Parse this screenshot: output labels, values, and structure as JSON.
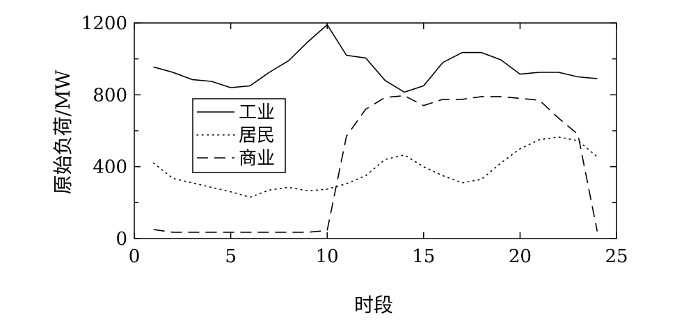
{
  "chart_data": {
    "type": "line",
    "title": "",
    "xlabel": "时段",
    "ylabel": "原始负荷/MW",
    "xlim": [
      0,
      25
    ],
    "ylim": [
      0,
      1200
    ],
    "xticks": [
      0,
      5,
      10,
      15,
      20,
      25
    ],
    "yticks": [
      0,
      400,
      800,
      1200
    ],
    "yminor_ticks": [
      200,
      600,
      1000
    ],
    "grid": false,
    "legend_position": "left",
    "x": [
      1,
      2,
      3,
      4,
      5,
      6,
      7,
      8,
      9,
      10,
      11,
      12,
      13,
      14,
      15,
      16,
      17,
      18,
      19,
      20,
      21,
      22,
      23,
      24
    ],
    "series": [
      {
        "name": "工业",
        "style": "solid",
        "color": "#000000",
        "values": [
          955,
          925,
          885,
          875,
          840,
          850,
          925,
          990,
          1095,
          1190,
          1020,
          1005,
          880,
          815,
          850,
          980,
          1035,
          1035,
          995,
          915,
          925,
          925,
          900,
          890
        ]
      },
      {
        "name": "居民",
        "style": "dotted",
        "color": "#000000",
        "values": [
          420,
          335,
          310,
          285,
          260,
          230,
          270,
          285,
          265,
          275,
          305,
          350,
          440,
          465,
          400,
          350,
          310,
          330,
          420,
          500,
          550,
          565,
          545,
          455
        ]
      },
      {
        "name": "商业",
        "style": "dashed",
        "color": "#000000",
        "values": [
          50,
          35,
          35,
          35,
          35,
          35,
          35,
          35,
          35,
          45,
          570,
          720,
          785,
          795,
          740,
          775,
          775,
          790,
          790,
          780,
          770,
          670,
          580,
          40
        ]
      }
    ]
  }
}
